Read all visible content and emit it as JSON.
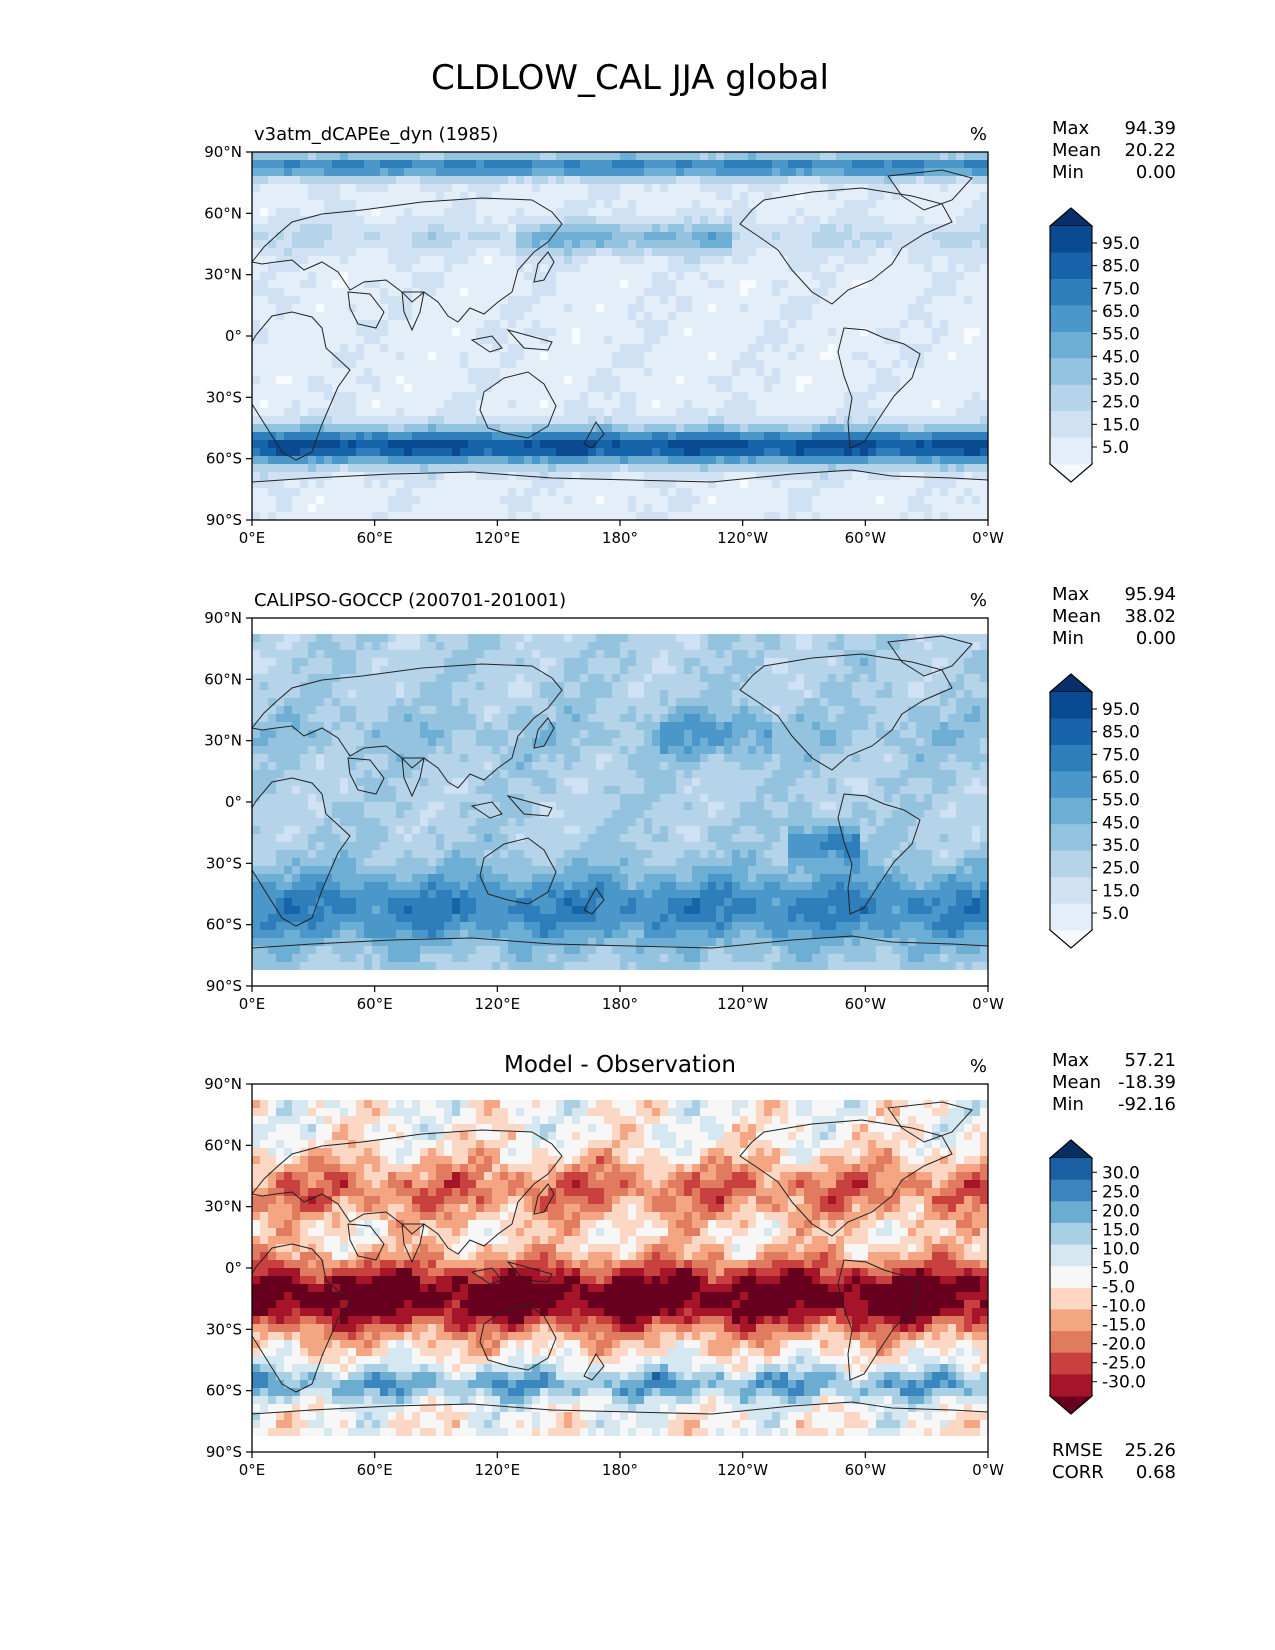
{
  "figure": {
    "title": "CLDLOW_CAL JJA global"
  },
  "axes": {
    "lat_ticks": [
      "90°N",
      "60°N",
      "30°N",
      "0°",
      "30°S",
      "60°S",
      "90°S"
    ],
    "lon_ticks": [
      "0°E",
      "60°E",
      "120°E",
      "180°",
      "120°W",
      "60°W",
      "0°W"
    ]
  },
  "panels": [
    {
      "id": "model",
      "title": "v3atm_dCAPEe_dyn (1985)",
      "center_title": "",
      "units": "%",
      "stats": [
        {
          "label": "Max",
          "value": "94.39"
        },
        {
          "label": "Mean",
          "value": "20.22"
        },
        {
          "label": "Min",
          "value": "0.00"
        }
      ],
      "colorbar": {
        "labels": [
          "95.0",
          "85.0",
          "75.0",
          "65.0",
          "55.0",
          "45.0",
          "35.0",
          "25.0",
          "15.0",
          "5.0"
        ],
        "colors": [
          "#f7fbff",
          "#e3eef9",
          "#cfe1f2",
          "#b5d4e9",
          "#93c3df",
          "#6daed5",
          "#4b97c9",
          "#2f7ebc",
          "#1864aa",
          "#0a4a90",
          "#08306b"
        ],
        "extend": "both"
      },
      "bottom_stats": []
    },
    {
      "id": "obs",
      "title": "CALIPSO-GOCCP (200701-201001)",
      "center_title": "",
      "units": "%",
      "stats": [
        {
          "label": "Max",
          "value": "95.94"
        },
        {
          "label": "Mean",
          "value": "38.02"
        },
        {
          "label": "Min",
          "value": "0.00"
        }
      ],
      "colorbar": {
        "labels": [
          "95.0",
          "85.0",
          "75.0",
          "65.0",
          "55.0",
          "45.0",
          "35.0",
          "25.0",
          "15.0",
          "5.0"
        ],
        "colors": [
          "#f7fbff",
          "#e3eef9",
          "#cfe1f2",
          "#b5d4e9",
          "#93c3df",
          "#6daed5",
          "#4b97c9",
          "#2f7ebc",
          "#1864aa",
          "#0a4a90",
          "#08306b"
        ],
        "extend": "both"
      },
      "bottom_stats": []
    },
    {
      "id": "diff",
      "title": "",
      "center_title": "Model - Observation",
      "units": "%",
      "stats": [
        {
          "label": "Max",
          "value": "57.21"
        },
        {
          "label": "Mean",
          "value": "-18.39"
        },
        {
          "label": "Min",
          "value": "-92.16"
        }
      ],
      "colorbar": {
        "labels": [
          "30.0",
          "25.0",
          "20.0",
          "15.0",
          "10.0",
          "5.0",
          "-5.0",
          "-10.0",
          "-15.0",
          "-20.0",
          "-25.0",
          "-30.0"
        ],
        "colors": [
          "#67001f",
          "#a51429",
          "#c9413e",
          "#e07b5f",
          "#f4a582",
          "#fbd7c4",
          "#f7f7f7",
          "#d5e7f1",
          "#a8cfe4",
          "#6bacd1",
          "#3a85bd",
          "#1b5fa3",
          "#053061"
        ],
        "extend": "both"
      },
      "bottom_stats": [
        {
          "label": "RMSE",
          "value": "25.26"
        },
        {
          "label": "CORR",
          "value": "0.68"
        }
      ]
    }
  ]
}
